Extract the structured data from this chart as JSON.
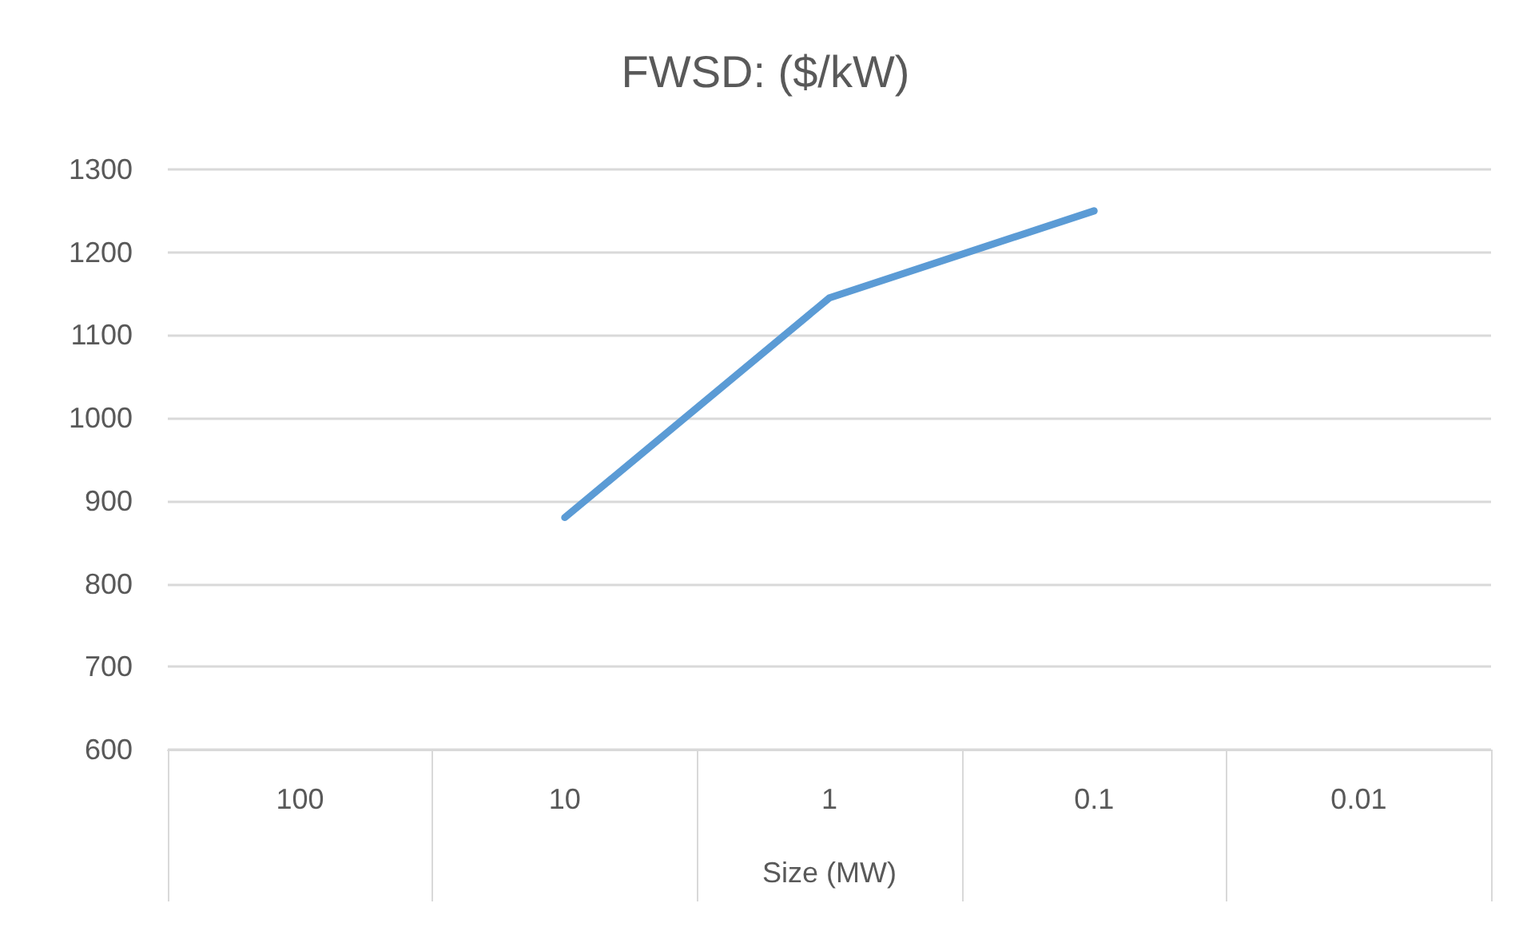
{
  "chart_data": {
    "type": "line",
    "title": "FWSD: ($/kW)",
    "xlabel": "Size (MW)",
    "categories": [
      "100",
      "10",
      "1",
      "0.1",
      "0.01"
    ],
    "series": [
      {
        "color": "#5b9bd5",
        "values": [
          null,
          880,
          1145,
          1250,
          null
        ]
      }
    ],
    "ylim": [
      600,
      1300
    ],
    "yticks": [
      600,
      700,
      800,
      900,
      1000,
      1100,
      1200,
      1300
    ],
    "grid": "y",
    "marker": "none",
    "line_style": "solid"
  }
}
